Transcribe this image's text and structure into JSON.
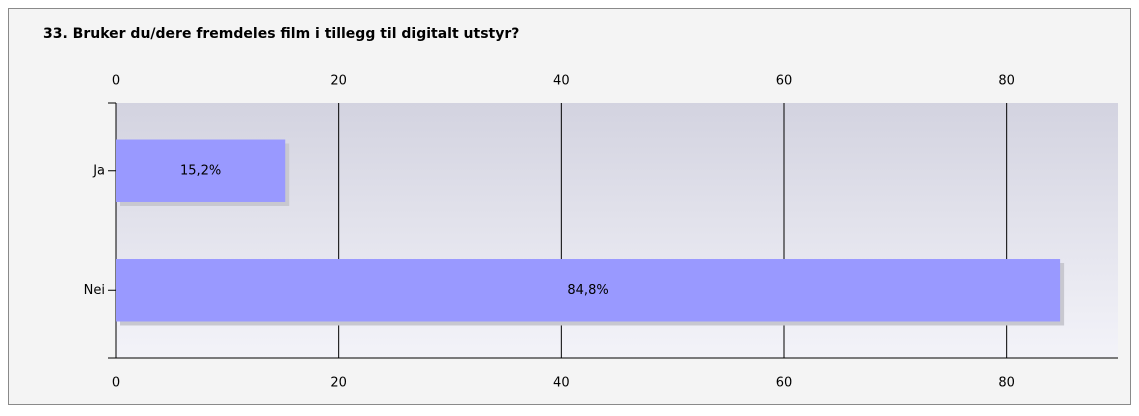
{
  "chart_data": {
    "type": "bar",
    "orientation": "horizontal",
    "title": "33. Bruker du/dere fremdeles film i tillegg til digitalt utstyr?",
    "categories": [
      "Ja",
      "Nei"
    ],
    "values": [
      15.2,
      84.8
    ],
    "value_labels": [
      "15,2%",
      "84,8%"
    ],
    "color": "#9999ff",
    "xlim": [
      0,
      90
    ],
    "xticks": [
      0,
      20,
      40,
      60,
      80
    ],
    "grid": true
  }
}
